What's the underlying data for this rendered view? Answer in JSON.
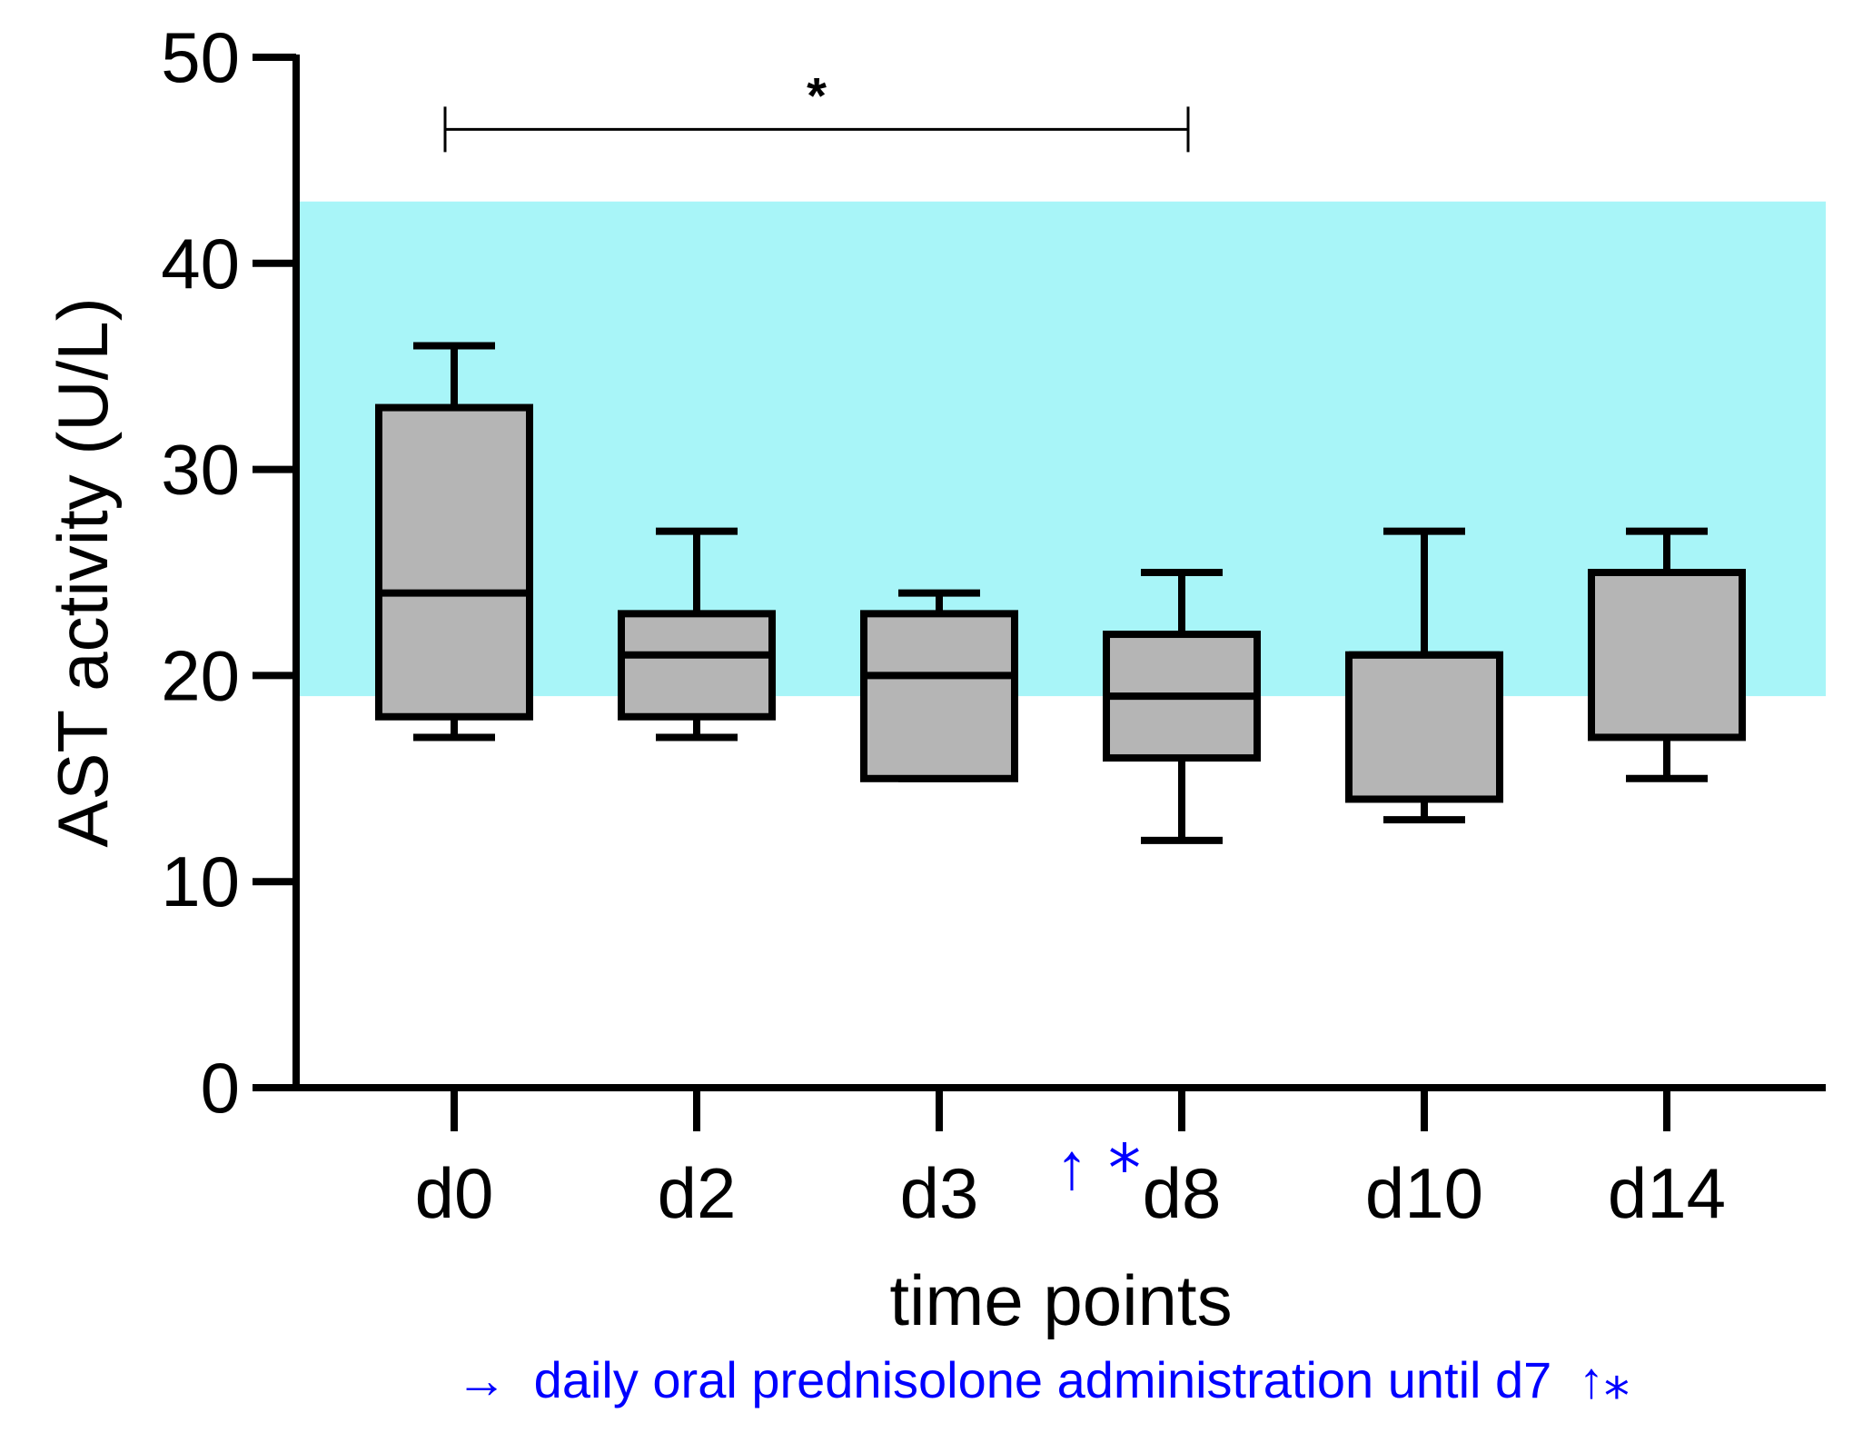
{
  "chart_data": {
    "type": "box",
    "xlabel": "time points",
    "ylabel": "AST activity (U/L)",
    "ylim": [
      0,
      50
    ],
    "yticks": [
      0,
      10,
      20,
      30,
      40,
      50
    ],
    "reference_range": {
      "low": 19,
      "high": 43,
      "color": "#a8f5f8"
    },
    "categories": [
      "d0",
      "d2",
      "d3",
      "d8",
      "d10",
      "d14"
    ],
    "boxes": [
      {
        "label": "d0",
        "min": 17,
        "q1": 18,
        "median": 24,
        "q3": 33,
        "max": 36
      },
      {
        "label": "d2",
        "min": 17,
        "q1": 18,
        "median": 21,
        "q3": 23,
        "max": 27
      },
      {
        "label": "d3",
        "min": 15,
        "q1": 15,
        "median": 20,
        "q3": 23,
        "max": 24
      },
      {
        "label": "d8",
        "min": 12,
        "q1": 16,
        "median": 19,
        "q3": 22,
        "max": 25
      },
      {
        "label": "d10",
        "min": 13,
        "q1": 14,
        "median": 21,
        "q3": 21,
        "max": 27
      },
      {
        "label": "d14",
        "min": 15,
        "q1": 17,
        "median": 25,
        "q3": 25,
        "max": 27
      }
    ],
    "significance": {
      "from": "d0",
      "to": "d8",
      "symbol": "*",
      "level": 46.5
    },
    "treatment_marker": {
      "arrow": "↑",
      "symbol": "⁎",
      "between": [
        "d3",
        "d8"
      ]
    },
    "note": {
      "arrow": "→",
      "text": "daily oral prednisolone administration until d7",
      "suffix": "↑⁎"
    },
    "colors": {
      "box_fill": "#b5b5b5",
      "stroke": "#000000",
      "annotation": "#0000ff"
    }
  }
}
